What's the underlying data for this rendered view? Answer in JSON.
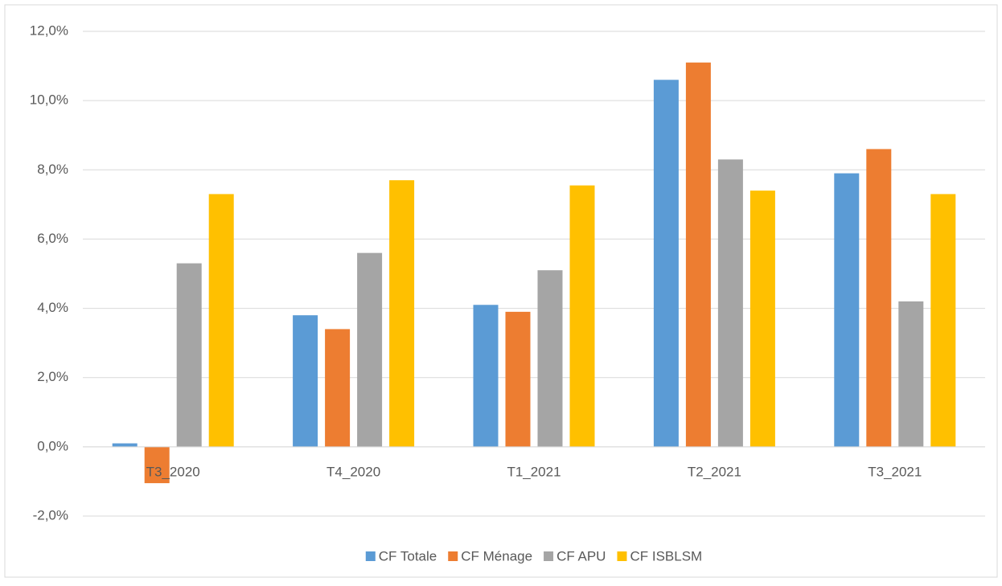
{
  "chart_data": {
    "type": "bar",
    "categories": [
      "T3_2020",
      "T4_2020",
      "T1_2021",
      "T2_2021",
      "T3_2021"
    ],
    "series": [
      {
        "name": "CF Totale",
        "color": "#5b9bd5",
        "values": [
          0.1,
          3.8,
          4.1,
          10.6,
          7.9
        ]
      },
      {
        "name": "CF Ménage",
        "color": "#ed7d31",
        "values": [
          -1.05,
          3.4,
          3.9,
          11.1,
          8.6
        ]
      },
      {
        "name": "CF APU",
        "color": "#a5a5a5",
        "values": [
          5.3,
          5.6,
          5.1,
          8.3,
          4.2
        ]
      },
      {
        "name": "CF ISBLSM",
        "color": "#ffc000",
        "values": [
          7.3,
          7.7,
          7.55,
          7.4,
          7.3
        ]
      }
    ],
    "ylim": [
      -2,
      12
    ],
    "yticks": [
      {
        "value": -2,
        "label": "-2,0%"
      },
      {
        "value": 0,
        "label": "0,0%"
      },
      {
        "value": 2,
        "label": "2,0%"
      },
      {
        "value": 4,
        "label": "4,0%"
      },
      {
        "value": 6,
        "label": "6,0%"
      },
      {
        "value": 8,
        "label": "8,0%"
      },
      {
        "value": 10,
        "label": "10,0%"
      },
      {
        "value": 12,
        "label": "12,0%"
      }
    ],
    "grid": true,
    "legend": "bottom"
  }
}
